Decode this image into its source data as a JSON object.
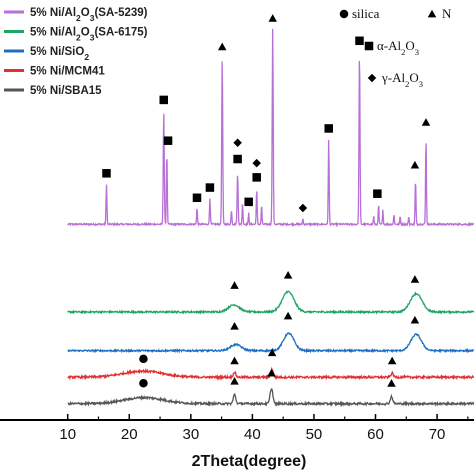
{
  "chart_data": {
    "type": "line",
    "title": "",
    "xlabel": "2Theta(degree)",
    "ylabel": "",
    "xlim": [
      10,
      76
    ],
    "x_ticks": [
      10,
      20,
      30,
      40,
      50,
      60,
      70
    ],
    "grid": false,
    "legend_position": "top-left",
    "series": [
      {
        "name": "5% Ni/Al2O3(SA-5239)",
        "name_parts": {
          "prefix": "5% Ni/Al",
          "sub1": "2",
          "mid": "O",
          "sub2": "3",
          "suffix": "(SA-5239)"
        },
        "color": "#b86fd6",
        "baseline": 0.0,
        "noise": 0.004,
        "peaks": [
          {
            "x": 16.3,
            "h": 0.2,
            "w": 0.07
          },
          {
            "x": 25.6,
            "h": 0.56,
            "w": 0.08
          },
          {
            "x": 26.1,
            "h": 0.36,
            "w": 0.07
          },
          {
            "x": 31.0,
            "h": 0.08,
            "w": 0.07
          },
          {
            "x": 33.1,
            "h": 0.13,
            "w": 0.07
          },
          {
            "x": 35.1,
            "h": 0.82,
            "w": 0.08
          },
          {
            "x": 36.6,
            "h": 0.07,
            "w": 0.07
          },
          {
            "x": 37.6,
            "h": 0.25,
            "w": 0.08
          },
          {
            "x": 38.4,
            "h": 0.1,
            "w": 0.07
          },
          {
            "x": 39.4,
            "h": 0.06,
            "w": 0.06
          },
          {
            "x": 40.7,
            "h": 0.17,
            "w": 0.07
          },
          {
            "x": 41.5,
            "h": 0.1,
            "w": 0.06
          },
          {
            "x": 43.3,
            "h": 0.96,
            "w": 0.08
          },
          {
            "x": 48.2,
            "h": 0.03,
            "w": 0.06
          },
          {
            "x": 52.4,
            "h": 0.42,
            "w": 0.07
          },
          {
            "x": 57.4,
            "h": 0.85,
            "w": 0.08
          },
          {
            "x": 59.7,
            "h": 0.04,
            "w": 0.06
          },
          {
            "x": 60.5,
            "h": 0.1,
            "w": 0.06
          },
          {
            "x": 61.2,
            "h": 0.07,
            "w": 0.06
          },
          {
            "x": 63.0,
            "h": 0.05,
            "w": 0.06
          },
          {
            "x": 64.0,
            "h": 0.04,
            "w": 0.06
          },
          {
            "x": 65.4,
            "h": 0.04,
            "w": 0.06
          },
          {
            "x": 66.5,
            "h": 0.22,
            "w": 0.07
          },
          {
            "x": 68.2,
            "h": 0.43,
            "w": 0.07
          }
        ]
      },
      {
        "name": "5% Ni/Al2O3(SA-6175)",
        "name_parts": {
          "prefix": "5% Ni/Al",
          "sub1": "2",
          "mid": "O",
          "sub2": "3",
          "suffix": "(SA-6175)"
        },
        "color": "#1fa463",
        "baseline": -0.43,
        "noise": 0.004,
        "peaks": [
          {
            "x": 37.0,
            "h": 0.035,
            "w": 0.9
          },
          {
            "x": 45.8,
            "h": 0.1,
            "w": 0.95
          },
          {
            "x": 66.6,
            "h": 0.09,
            "w": 0.95
          }
        ]
      },
      {
        "name": "5% Ni/SiO2",
        "name_parts": {
          "prefix": "5% Ni/SiO",
          "sub1": "2",
          "mid": "",
          "sub2": "",
          "suffix": ""
        },
        "color": "#1e6fc4",
        "baseline": -0.62,
        "noise": 0.004,
        "peaks": [
          {
            "x": 37.3,
            "h": 0.03,
            "w": 0.9
          },
          {
            "x": 45.9,
            "h": 0.085,
            "w": 0.85
          },
          {
            "x": 66.6,
            "h": 0.08,
            "w": 0.85
          }
        ]
      },
      {
        "name": "5% Ni/MCM41",
        "name_parts": {
          "prefix": "5% Ni/MCM41",
          "sub1": "",
          "mid": "",
          "sub2": "",
          "suffix": ""
        },
        "color": "#e03030",
        "baseline": -0.75,
        "noise": 0.005,
        "peaks": [
          {
            "x": 22.2,
            "h": 0.03,
            "w": 3.2
          },
          {
            "x": 37.1,
            "h": 0.025,
            "w": 0.2
          },
          {
            "x": 43.2,
            "h": 0.04,
            "w": 0.2
          },
          {
            "x": 62.7,
            "h": 0.02,
            "w": 0.2
          }
        ]
      },
      {
        "name": "5% Ni/SBA15",
        "name_parts": {
          "prefix": "5% Ni/SBA15",
          "sub1": "",
          "mid": "",
          "sub2": "",
          "suffix": ""
        },
        "color": "#555555",
        "baseline": -0.88,
        "noise": 0.005,
        "peaks": [
          {
            "x": 22.4,
            "h": 0.03,
            "w": 3.2
          },
          {
            "x": 37.1,
            "h": 0.045,
            "w": 0.2
          },
          {
            "x": 43.1,
            "h": 0.075,
            "w": 0.22
          },
          {
            "x": 62.6,
            "h": 0.035,
            "w": 0.2
          }
        ]
      }
    ],
    "marker_legend": [
      {
        "symbol": "circle",
        "label": "silica"
      },
      {
        "symbol": "triangle",
        "label": "N"
      },
      {
        "symbol": "square",
        "label_parts": {
          "prefix": "α-Al",
          "sub1": "2",
          "mid": "O",
          "sub2": "3"
        }
      },
      {
        "symbol": "diamond",
        "label_parts": {
          "prefix": "γ-Al",
          "sub1": "2",
          "mid": "O",
          "sub2": "3"
        }
      }
    ],
    "annotations": [
      {
        "symbol": "square",
        "x": 16.3,
        "y": 0.25
      },
      {
        "symbol": "square",
        "x": 25.6,
        "y": 0.61
      },
      {
        "symbol": "square",
        "x": 26.3,
        "y": 0.41
      },
      {
        "symbol": "square",
        "x": 31.0,
        "y": 0.13
      },
      {
        "symbol": "square",
        "x": 33.1,
        "y": 0.18
      },
      {
        "symbol": "triangle",
        "x": 35.1,
        "y": 0.87
      },
      {
        "symbol": "diamond",
        "x": 37.6,
        "y": 0.4
      },
      {
        "symbol": "square",
        "x": 37.6,
        "y": 0.32
      },
      {
        "symbol": "square",
        "x": 39.4,
        "y": 0.11
      },
      {
        "symbol": "diamond",
        "x": 40.7,
        "y": 0.3
      },
      {
        "symbol": "square",
        "x": 40.7,
        "y": 0.23
      },
      {
        "symbol": "triangle",
        "x": 43.3,
        "y": 1.01
      },
      {
        "symbol": "diamond",
        "x": 48.2,
        "y": 0.08
      },
      {
        "symbol": "square",
        "x": 52.4,
        "y": 0.47
      },
      {
        "symbol": "square",
        "x": 57.4,
        "y": 0.9
      },
      {
        "symbol": "square",
        "x": 60.3,
        "y": 0.15
      },
      {
        "symbol": "triangle",
        "x": 66.4,
        "y": 0.29
      },
      {
        "symbol": "triangle",
        "x": 68.2,
        "y": 0.5
      },
      {
        "symbol": "triangle",
        "x": 37.1,
        "y": -0.3
      },
      {
        "symbol": "triangle",
        "x": 45.8,
        "y": -0.25
      },
      {
        "symbol": "triangle",
        "x": 66.4,
        "y": -0.27
      },
      {
        "symbol": "triangle",
        "x": 37.1,
        "y": -0.5
      },
      {
        "symbol": "triangle",
        "x": 45.8,
        "y": -0.45
      },
      {
        "symbol": "triangle",
        "x": 66.4,
        "y": -0.47
      },
      {
        "symbol": "circle",
        "x": 22.3,
        "y": -0.66
      },
      {
        "symbol": "triangle",
        "x": 37.1,
        "y": -0.67
      },
      {
        "symbol": "triangle",
        "x": 43.2,
        "y": -0.63
      },
      {
        "symbol": "triangle",
        "x": 62.7,
        "y": -0.67
      },
      {
        "symbol": "circle",
        "x": 22.3,
        "y": -0.78
      },
      {
        "symbol": "triangle",
        "x": 37.1,
        "y": -0.77
      },
      {
        "symbol": "triangle",
        "x": 43.1,
        "y": -0.73
      },
      {
        "symbol": "triangle",
        "x": 62.6,
        "y": -0.78
      }
    ]
  }
}
